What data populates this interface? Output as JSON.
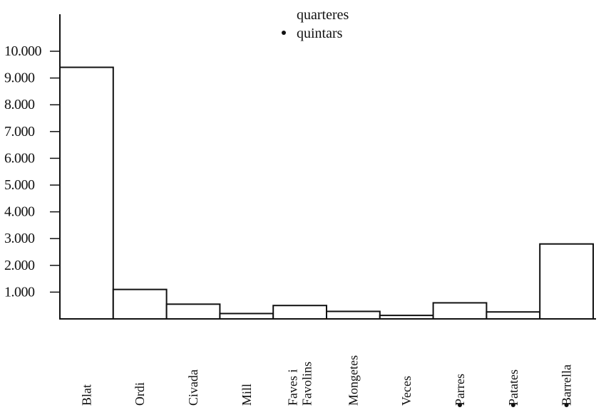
{
  "chart_data": {
    "type": "bar",
    "title": "",
    "xlabel": "",
    "ylabel": "",
    "ylim": [
      0,
      10000
    ],
    "yticks": [
      1000,
      2000,
      3000,
      4000,
      5000,
      6000,
      7000,
      8000,
      9000,
      10000
    ],
    "ytick_labels": [
      "1.000",
      "2.000",
      "3.000",
      "4.000",
      "5.000",
      "6.000",
      "7.000",
      "8.000",
      "9.000",
      "10.000"
    ],
    "grid": false,
    "legend": {
      "placement": "top-center",
      "entries": [
        {
          "label": "quarteres",
          "marker": "none"
        },
        {
          "label": "quintars",
          "marker": "bullet"
        }
      ]
    },
    "categories": [
      {
        "label": "Blat",
        "value": 9400,
        "unit": "quarteres"
      },
      {
        "label": "Ordi",
        "value": 1100,
        "unit": "quarteres"
      },
      {
        "label": "Civada",
        "value": 550,
        "unit": "quarteres"
      },
      {
        "label": "Mill",
        "value": 200,
        "unit": "quarteres"
      },
      {
        "label": "Faves i\nFavolins",
        "value": 500,
        "unit": "quarteres"
      },
      {
        "label": "Mongetes",
        "value": 280,
        "unit": "quarteres"
      },
      {
        "label": "Veces",
        "value": 130,
        "unit": "quarteres"
      },
      {
        "label": "Parres",
        "value": 600,
        "unit": "quintars"
      },
      {
        "label": "Patates",
        "value": 260,
        "unit": "quintars"
      },
      {
        "label": "Barrella",
        "value": 2800,
        "unit": "quintars"
      }
    ]
  }
}
